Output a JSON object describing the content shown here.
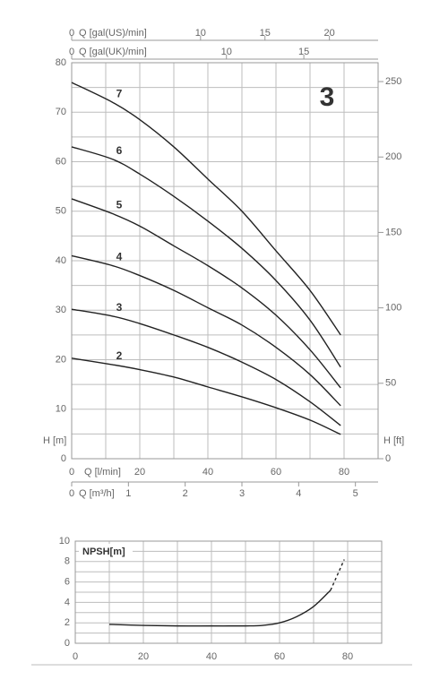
{
  "chart_data": [
    {
      "type": "line",
      "badge": "3",
      "xlabel": "Q [l/min]",
      "ylabel": "H [m]",
      "y2label": "H [ft]",
      "x": [
        0,
        12,
        20,
        30,
        40,
        50,
        60,
        70,
        79
      ],
      "xlim": [
        0,
        90
      ],
      "xticks": [
        0,
        20,
        40,
        60,
        80
      ],
      "minor_xticks": [
        10,
        30,
        50,
        70
      ],
      "ylim": [
        0,
        80
      ],
      "yticks": [
        0,
        10,
        20,
        30,
        40,
        50,
        60,
        70,
        80
      ],
      "minor_yticks": [
        5,
        15,
        25,
        35,
        45,
        55,
        65,
        75
      ],
      "y2lim": [
        0,
        262.5
      ],
      "y2ticks": [
        0,
        50,
        100,
        150,
        200,
        250
      ],
      "grid": true,
      "line_color": "#222222",
      "dashed_below_x": 12,
      "extra_x_axes": [
        {
          "label": "Q [gal(US)/min]",
          "position": "top",
          "xlim": [
            0,
            23.78
          ],
          "xticks": [
            0,
            10,
            15,
            20
          ]
        },
        {
          "label": "Q [gal(UK)/min]",
          "position": "top",
          "xlim": [
            0,
            19.8
          ],
          "xticks": [
            0,
            10,
            15
          ]
        },
        {
          "label": "Q [m³/h]",
          "position": "bottom",
          "xlim": [
            0,
            5.4
          ],
          "xticks": [
            0,
            1,
            2,
            3,
            4,
            5
          ]
        }
      ],
      "series": [
        {
          "name": "7",
          "values": [
            76,
            72,
            68.5,
            63,
            56.5,
            50,
            42,
            34,
            25
          ]
        },
        {
          "name": "6",
          "values": [
            63,
            60.5,
            57.5,
            53,
            48,
            42.5,
            36,
            28,
            18.5
          ]
        },
        {
          "name": "5",
          "values": [
            52.5,
            49.5,
            47,
            43,
            39,
            34.5,
            29,
            22,
            14.3
          ]
        },
        {
          "name": "4",
          "values": [
            41,
            39,
            37,
            34,
            30.5,
            27,
            22.5,
            17,
            10.7
          ]
        },
        {
          "name": "3",
          "values": [
            30.2,
            28.8,
            27.3,
            25,
            22.5,
            19.5,
            16,
            11.5,
            6.7
          ]
        },
        {
          "name": "2",
          "values": [
            20.3,
            19,
            18,
            16.5,
            14.5,
            12.5,
            10.3,
            7.8,
            4.9
          ]
        }
      ]
    },
    {
      "type": "line",
      "title": "NPSH[m]",
      "x": [
        10,
        20,
        30,
        40,
        50,
        55,
        60,
        65,
        70,
        75,
        79
      ],
      "values": [
        1.85,
        1.75,
        1.7,
        1.7,
        1.7,
        1.75,
        2.0,
        2.6,
        3.6,
        5.2,
        8.2
      ],
      "xlim": [
        0,
        90
      ],
      "xticks": [
        0,
        20,
        40,
        60,
        80
      ],
      "minor_xticks": [
        10,
        30,
        50,
        70
      ],
      "ylim": [
        0,
        10
      ],
      "yticks": [
        0,
        2,
        4,
        6,
        8,
        10
      ],
      "minor_yticks": [
        1,
        3,
        5,
        7,
        9
      ],
      "grid": true,
      "line_color": "#222222",
      "dashed_above_x": 75
    }
  ]
}
